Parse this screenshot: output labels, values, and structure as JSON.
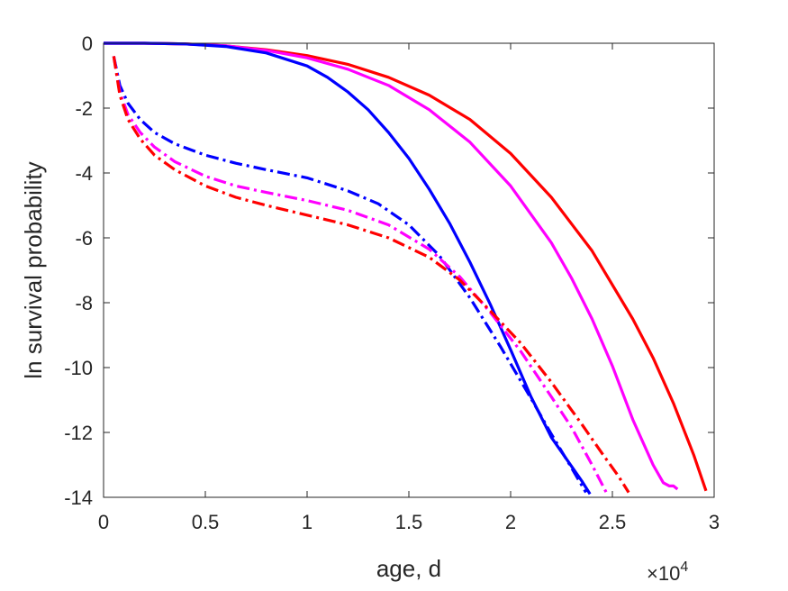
{
  "chart_data": {
    "type": "line",
    "title": "",
    "xlabel": "age, d",
    "ylabel": "ln survival probability",
    "x_multiplier_label": "×10",
    "x_multiplier_exponent": "4",
    "xlim": [
      0,
      30000
    ],
    "ylim": [
      -14,
      0
    ],
    "xticks": [
      0,
      5000,
      10000,
      15000,
      20000,
      25000,
      30000
    ],
    "xtick_labels": [
      "0",
      "0.5",
      "1",
      "1.5",
      "2",
      "2.5",
      "3"
    ],
    "yticks": [
      0,
      -2,
      -4,
      -6,
      -8,
      -10,
      -12,
      -14
    ],
    "ytick_labels": [
      "0",
      "-2",
      "-4",
      "-6",
      "-8",
      "-10",
      "-12",
      "-14"
    ],
    "grid": false,
    "legend": "none",
    "series": [
      {
        "color": "#ff0000",
        "style": "solid",
        "x": [
          0,
          2000,
          4000,
          6000,
          8000,
          10000,
          12000,
          14000,
          16000,
          18000,
          20000,
          22000,
          24000,
          26000,
          27000,
          28000,
          29000,
          29600
        ],
        "y": [
          0,
          0,
          -0.02,
          -0.08,
          -0.2,
          -0.38,
          -0.65,
          -1.05,
          -1.6,
          -2.35,
          -3.4,
          -4.75,
          -6.4,
          -8.5,
          -9.7,
          -11.1,
          -12.7,
          -13.8
        ]
      },
      {
        "color": "#ff00ff",
        "style": "solid",
        "x": [
          0,
          2000,
          4000,
          6000,
          8000,
          10000,
          12000,
          14000,
          16000,
          18000,
          20000,
          22000,
          23000,
          24000,
          25000,
          26000,
          27000,
          27500,
          27800,
          28000,
          28200
        ],
        "y": [
          0,
          0,
          -0.02,
          -0.08,
          -0.22,
          -0.45,
          -0.8,
          -1.3,
          -2.05,
          -3.05,
          -4.4,
          -6.15,
          -7.25,
          -8.5,
          -9.95,
          -11.6,
          -13.0,
          -13.55,
          -13.65,
          -13.65,
          -13.75
        ]
      },
      {
        "color": "#0000ff",
        "style": "solid",
        "x": [
          0,
          2000,
          4000,
          6000,
          8000,
          10000,
          11000,
          12000,
          13000,
          14000,
          15000,
          16000,
          17000,
          18000,
          19000,
          20000,
          21000,
          22000,
          23000,
          23500,
          23900
        ],
        "y": [
          0,
          0,
          -0.02,
          -0.1,
          -0.3,
          -0.7,
          -1.05,
          -1.5,
          -2.05,
          -2.75,
          -3.55,
          -4.5,
          -5.55,
          -6.75,
          -8.05,
          -9.45,
          -10.9,
          -12.15,
          -13.05,
          -13.5,
          -13.9
        ]
      },
      {
        "color": "#0000ff",
        "style": "dashdot",
        "x": [
          500,
          800,
          1200,
          1800,
          2500,
          3500,
          5000,
          6500,
          8000,
          10000,
          12000,
          13500,
          15000,
          16500,
          18000,
          19500,
          21000,
          22000,
          23000,
          23700
        ],
        "y": [
          -0.4,
          -1.3,
          -1.85,
          -2.35,
          -2.75,
          -3.1,
          -3.45,
          -3.7,
          -3.9,
          -4.15,
          -4.55,
          -4.95,
          -5.6,
          -6.55,
          -7.85,
          -9.35,
          -10.95,
          -12.05,
          -13.1,
          -13.85
        ]
      },
      {
        "color": "#ff00ff",
        "style": "dashdot",
        "x": [
          500,
          800,
          1200,
          1800,
          2500,
          3500,
          5000,
          6500,
          8000,
          10000,
          12000,
          14000,
          16000,
          17500,
          19000,
          20500,
          22000,
          23000,
          24000,
          24700
        ],
        "y": [
          -0.4,
          -1.5,
          -2.2,
          -2.75,
          -3.2,
          -3.65,
          -4.1,
          -4.4,
          -4.6,
          -4.85,
          -5.15,
          -5.6,
          -6.35,
          -7.2,
          -8.3,
          -9.5,
          -10.9,
          -11.85,
          -13.0,
          -13.85
        ]
      },
      {
        "color": "#ff0000",
        "style": "dashdot",
        "x": [
          500,
          800,
          1200,
          1800,
          2500,
          3500,
          5000,
          6500,
          8000,
          10000,
          12000,
          14000,
          16000,
          17500,
          19000,
          20500,
          22000,
          23500,
          24500,
          25300,
          25800
        ],
        "y": [
          -0.4,
          -1.6,
          -2.35,
          -2.95,
          -3.45,
          -3.9,
          -4.4,
          -4.75,
          -5.0,
          -5.3,
          -5.6,
          -6.0,
          -6.6,
          -7.3,
          -8.25,
          -9.25,
          -10.45,
          -11.75,
          -12.65,
          -13.35,
          -13.85
        ]
      }
    ]
  }
}
